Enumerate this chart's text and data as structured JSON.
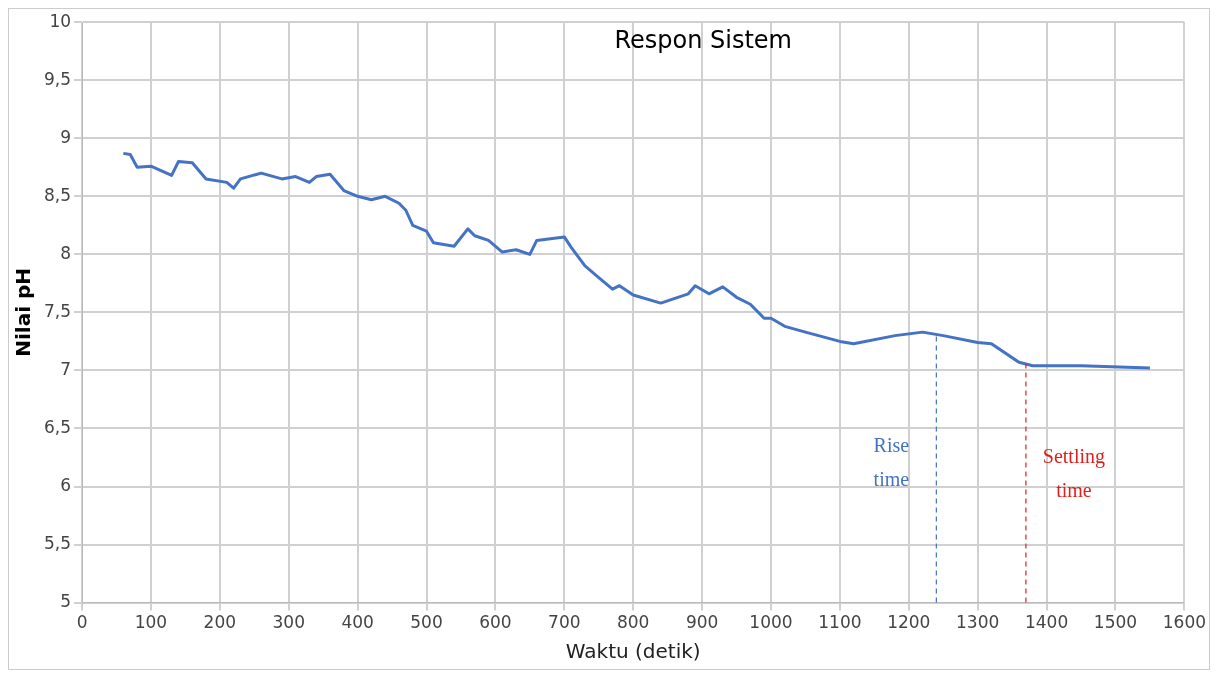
{
  "chart_data": {
    "type": "line",
    "title": "Respon Sistem",
    "xlabel": "Waktu (detik)",
    "ylabel": "Nilai pH",
    "x": [
      60,
      70,
      80,
      100,
      130,
      140,
      160,
      180,
      210,
      220,
      230,
      260,
      290,
      310,
      330,
      340,
      360,
      380,
      400,
      420,
      440,
      460,
      470,
      480,
      500,
      510,
      540,
      560,
      570,
      590,
      610,
      630,
      650,
      660,
      700,
      710,
      730,
      750,
      770,
      780,
      800,
      840,
      880,
      890,
      910,
      930,
      950,
      970,
      990,
      1000,
      1020,
      1050,
      1100,
      1120,
      1180,
      1220,
      1250,
      1300,
      1320,
      1360,
      1380,
      1450,
      1550
    ],
    "series": [
      {
        "color": "#4472c4",
        "values": [
          8.87,
          8.86,
          8.75,
          8.76,
          8.68,
          8.8,
          8.79,
          8.65,
          8.62,
          8.57,
          8.65,
          8.7,
          8.65,
          8.67,
          8.62,
          8.67,
          8.69,
          8.55,
          8.5,
          8.47,
          8.5,
          8.44,
          8.38,
          8.25,
          8.2,
          8.1,
          8.07,
          8.22,
          8.16,
          8.12,
          8.02,
          8.04,
          8,
          8.12,
          8.15,
          8.06,
          7.9,
          7.8,
          7.7,
          7.73,
          7.65,
          7.58,
          7.66,
          7.73,
          7.66,
          7.72,
          7.63,
          7.57,
          7.45,
          7.45,
          7.38,
          7.33,
          7.25,
          7.23,
          7.3,
          7.33,
          7.3,
          7.24,
          7.23,
          7.07,
          7.04,
          7.04,
          7.02
        ]
      }
    ],
    "xlim": [
      0,
      1600
    ],
    "xticks": [
      0,
      100,
      200,
      300,
      400,
      500,
      600,
      700,
      800,
      900,
      1000,
      1100,
      1200,
      1300,
      1400,
      1500,
      1600
    ],
    "ylim": [
      5,
      10
    ],
    "yticks": [
      5,
      {
        "value": 5.5,
        "label": "5,5"
      },
      6,
      {
        "value": 6.5,
        "label": "6,5"
      },
      7,
      {
        "value": 7.5,
        "label": "7,5"
      },
      8,
      {
        "value": 8.5,
        "label": "8,5"
      },
      9,
      {
        "value": 9.5,
        "label": "9,5"
      },
      10
    ],
    "ref_lines": [
      {
        "axis": "x",
        "value": 1240,
        "label": "Rise time",
        "color": "#4472c4",
        "line_style": "dashed"
      },
      {
        "axis": "x",
        "value": 1370,
        "label": "Settling time",
        "color": "#e0201c",
        "line_style": "dashed"
      }
    ],
    "grid": true,
    "legend": false,
    "marker": "none",
    "line_style": "solid"
  }
}
